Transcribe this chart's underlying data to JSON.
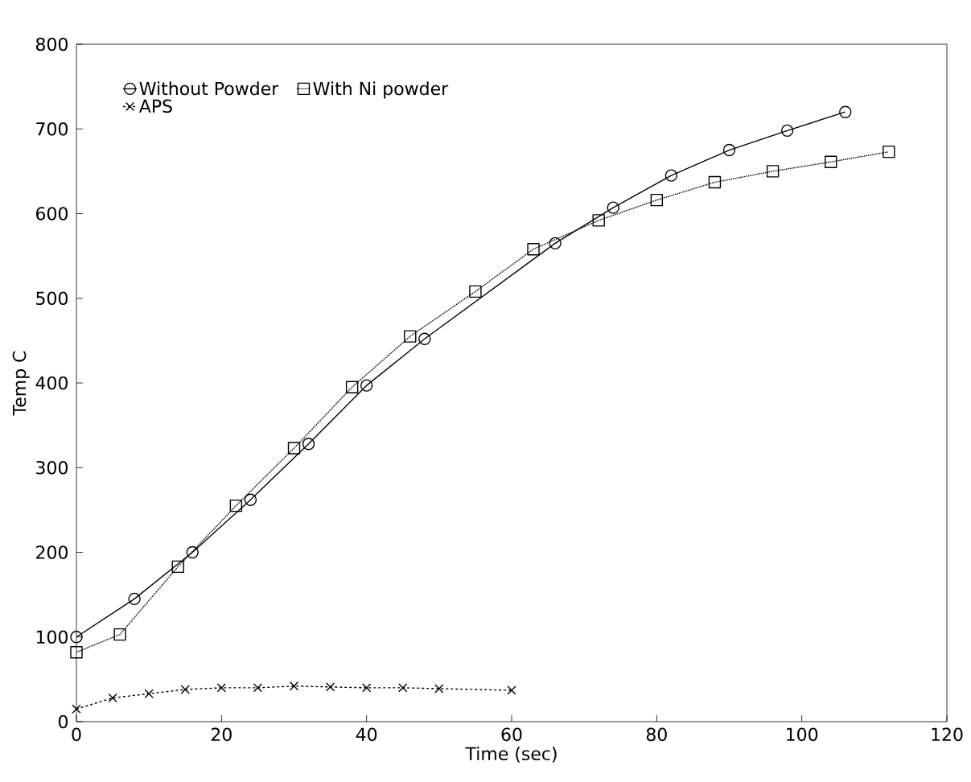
{
  "chart_data": {
    "type": "line",
    "xlabel": "Time (sec)",
    "ylabel": "Temp C",
    "xlim": [
      0,
      120
    ],
    "xticks": [
      0,
      20,
      40,
      60,
      80,
      100,
      120
    ],
    "ylim": [
      0,
      800
    ],
    "yticks": [
      0,
      100,
      200,
      300,
      400,
      500,
      600,
      700,
      800
    ],
    "legend": "top left",
    "grid": false,
    "series": [
      {
        "name": "Without Powder",
        "color": "#000000",
        "marker": "circle",
        "line_style": "solid",
        "x": [
          0,
          8,
          16,
          24,
          32,
          40,
          48,
          66,
          74,
          82,
          90,
          98,
          106
        ],
        "values": [
          100,
          145,
          200,
          262,
          328,
          397,
          452,
          565,
          607,
          645,
          675,
          698,
          720
        ]
      },
      {
        "name": "With Ni powder",
        "color": "#000000",
        "marker": "square",
        "line_style": "dotted",
        "x": [
          0,
          6,
          14,
          22,
          30,
          38,
          46,
          55,
          63,
          72,
          80,
          88,
          96,
          104,
          112
        ],
        "values": [
          82,
          103,
          183,
          255,
          323,
          395,
          455,
          508,
          558,
          592,
          616,
          637,
          650,
          661,
          673
        ]
      },
      {
        "name": "APS",
        "color": "#000000",
        "marker": "cross",
        "line_style": "dashed",
        "x": [
          0,
          5,
          10,
          15,
          20,
          25,
          30,
          35,
          40,
          45,
          50,
          60
        ],
        "values": [
          15,
          28,
          33,
          38,
          40,
          40,
          42,
          41,
          40,
          40,
          39,
          37
        ]
      }
    ]
  }
}
